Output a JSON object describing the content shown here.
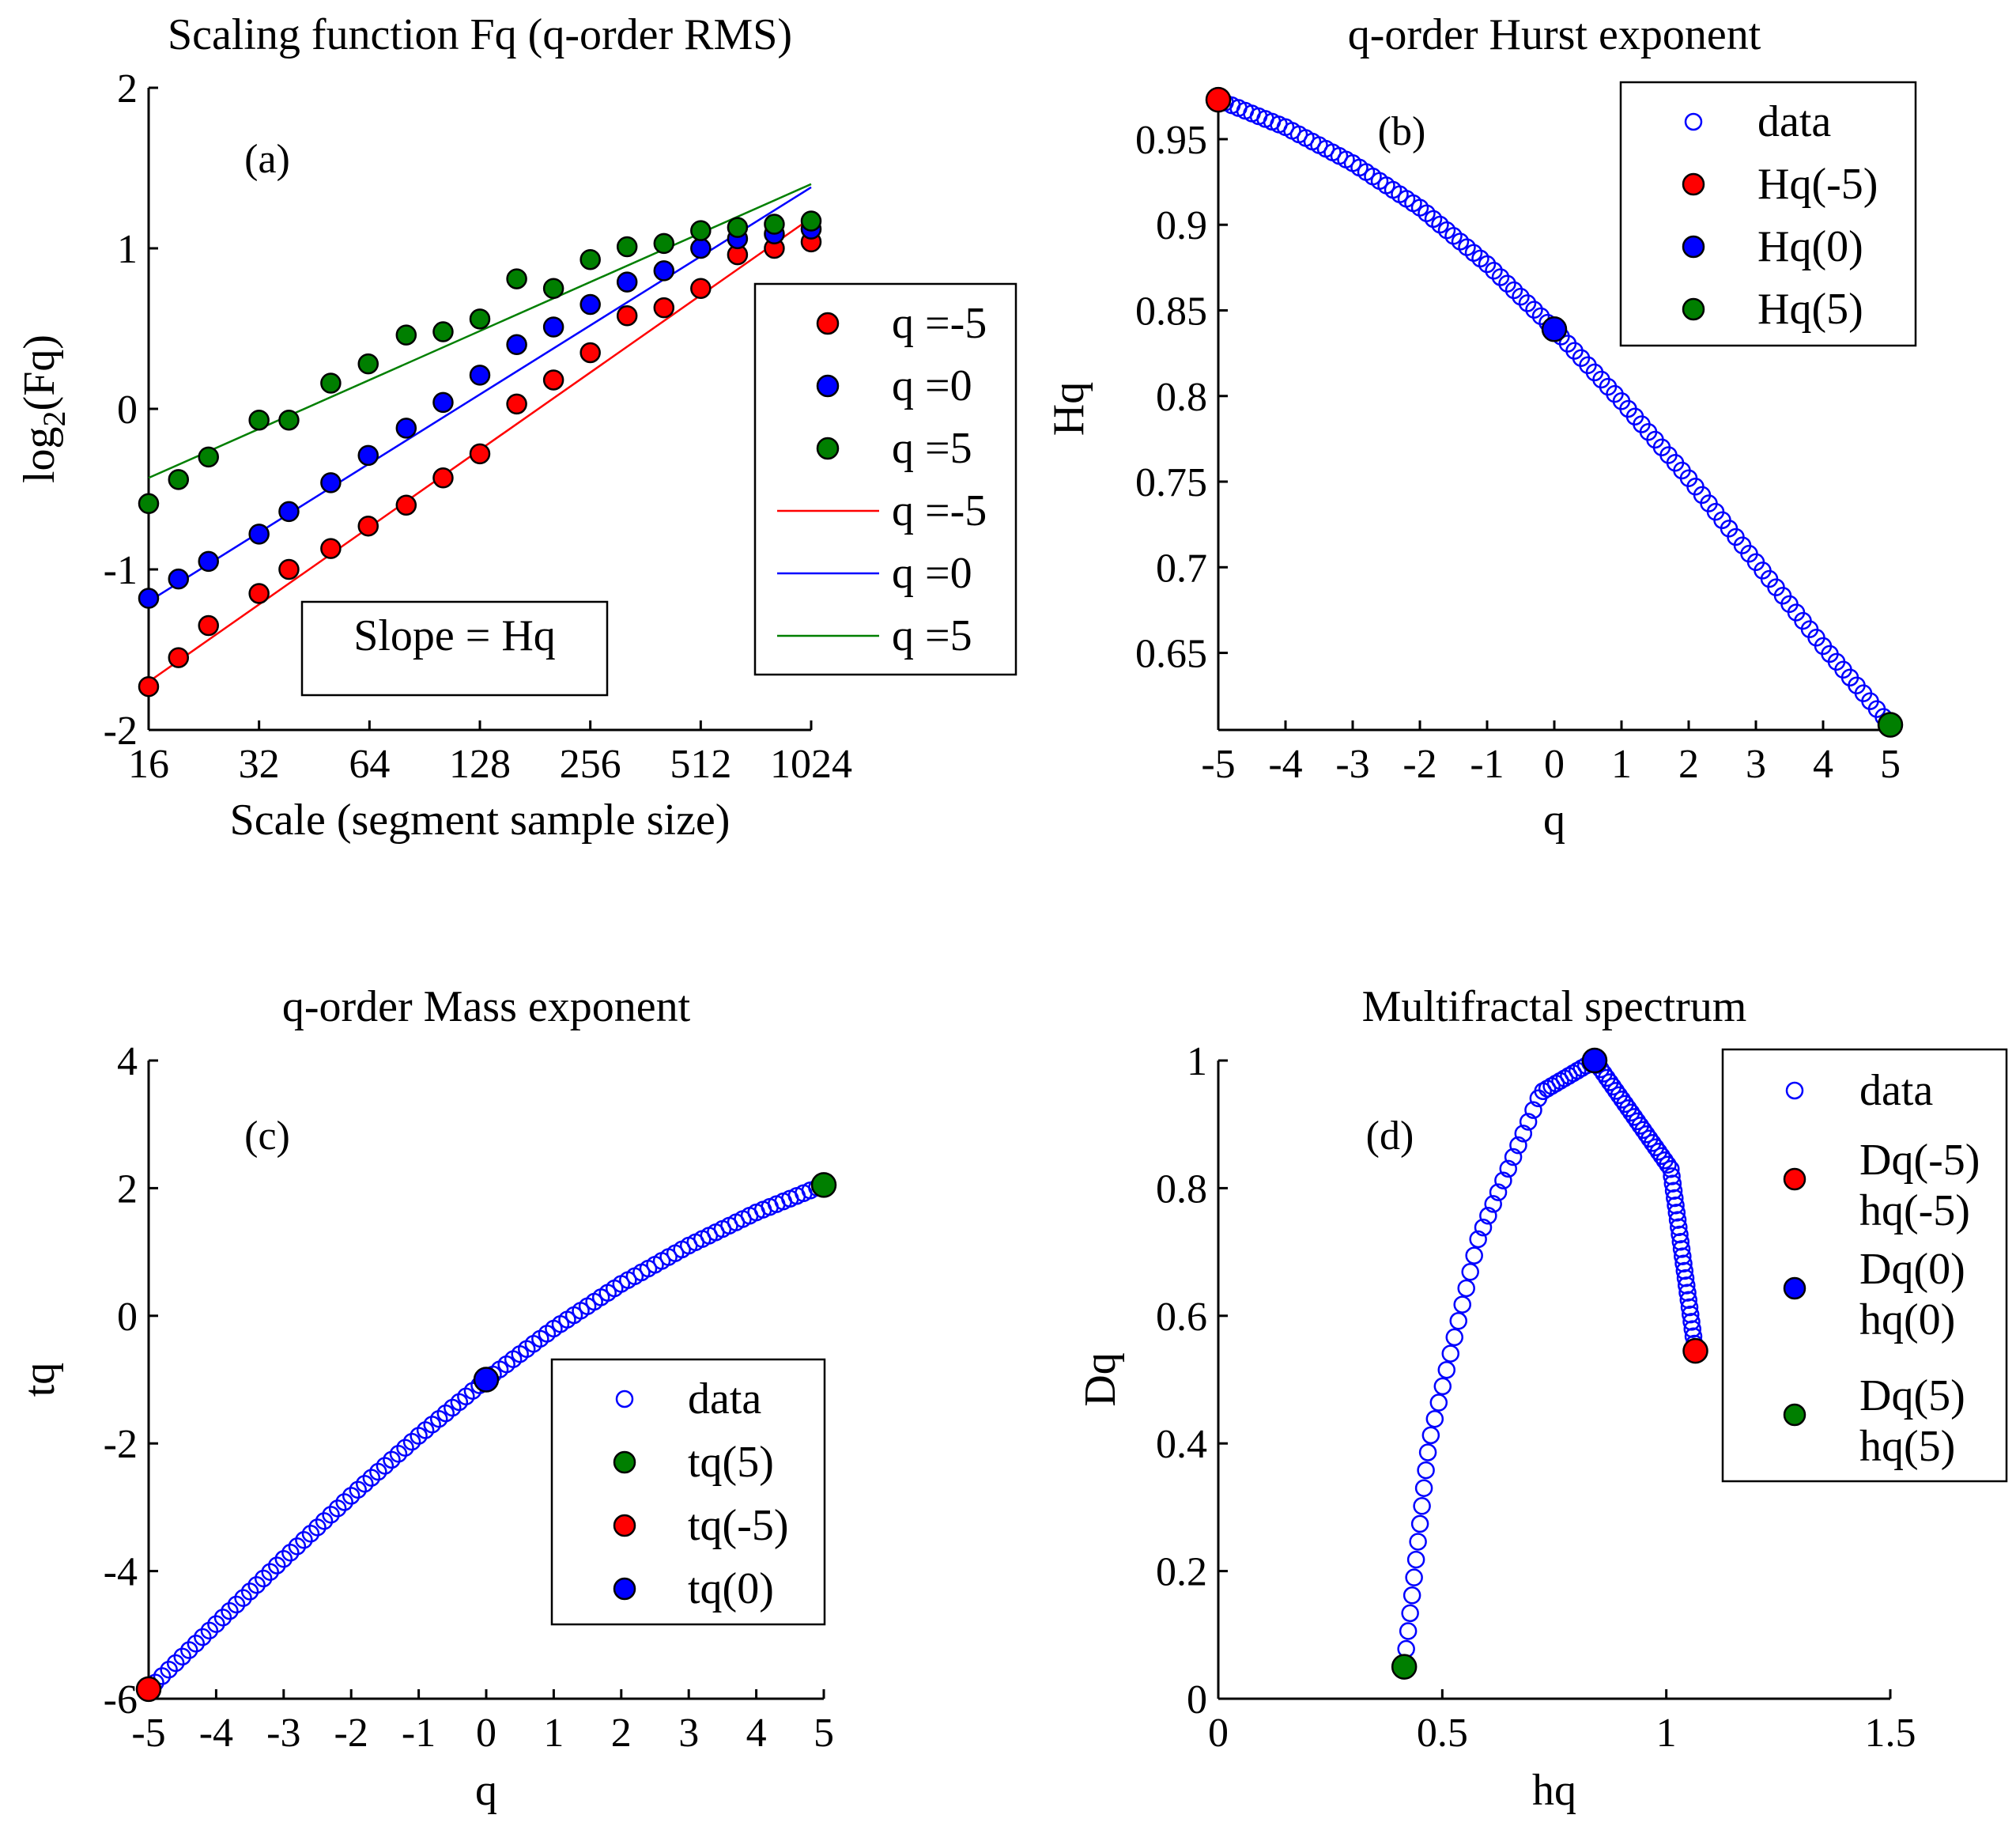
{
  "colors": {
    "red": "#ff0000",
    "blue": "#0000ff",
    "green": "#007f00",
    "axis": "#000000",
    "background": "#ffffff"
  },
  "chart_data": [
    {
      "id": "a",
      "type": "scatter",
      "panel_label": "(a)",
      "title": "Scaling function Fq (q-order RMS)",
      "xlabel": "Scale (segment sample size)",
      "ylabel_main": "log",
      "ylabel_sub": "2",
      "ylabel_tail": "(Fq)",
      "xscale": "log2",
      "xlim": [
        16,
        1024
      ],
      "ylim": [
        -2,
        2
      ],
      "xticks": [
        16,
        32,
        64,
        128,
        256,
        512,
        1024
      ],
      "xtick_labels": [
        "16",
        "32",
        "64",
        "128",
        "256",
        "512",
        "1024"
      ],
      "yticks": [
        -2,
        -1,
        0,
        1,
        2
      ],
      "ytick_labels": [
        "-2",
        "-1",
        "0",
        "1",
        "2"
      ],
      "annotation": "Slope = Hq",
      "legend_position": "right",
      "legend": [
        {
          "label": "q =-5",
          "kind": "marker",
          "color": "red"
        },
        {
          "label": "q =0",
          "kind": "marker",
          "color": "blue"
        },
        {
          "label": "q =5",
          "kind": "marker",
          "color": "green"
        },
        {
          "label": "q =-5",
          "kind": "line",
          "color": "red"
        },
        {
          "label": "q =0",
          "kind": "line",
          "color": "blue"
        },
        {
          "label": "q =5",
          "kind": "line",
          "color": "green"
        }
      ],
      "x": [
        16,
        19.3,
        23.3,
        32,
        38.6,
        50.2,
        63.5,
        80.6,
        101.6,
        128,
        161.3,
        203.2,
        256,
        322.5,
        406.4,
        512,
        645.1,
        812.7,
        1024
      ],
      "series": [
        {
          "name": "q =-5",
          "color": "red",
          "values": [
            -1.73,
            -1.55,
            -1.35,
            -1.15,
            -1.0,
            -0.87,
            -0.73,
            -0.6,
            -0.43,
            -0.28,
            0.03,
            0.18,
            0.35,
            0.58,
            0.63,
            0.75,
            0.96,
            1.0,
            1.04
          ],
          "fit": {
            "x": [
              16,
              1024
            ],
            "y": [
              -1.7,
              1.19
            ]
          }
        },
        {
          "name": "q =0",
          "color": "blue",
          "values": [
            -1.18,
            -1.06,
            -0.95,
            -0.78,
            -0.64,
            -0.46,
            -0.29,
            -0.12,
            0.04,
            0.21,
            0.4,
            0.51,
            0.65,
            0.79,
            0.86,
            1.0,
            1.06,
            1.09,
            1.12
          ],
          "fit": {
            "x": [
              16,
              1024
            ],
            "y": [
              -1.2,
              1.38
            ]
          }
        },
        {
          "name": "q =5",
          "color": "green",
          "values": [
            -0.59,
            -0.44,
            -0.3,
            -0.07,
            -0.07,
            0.16,
            0.28,
            0.46,
            0.48,
            0.56,
            0.81,
            0.75,
            0.93,
            1.01,
            1.03,
            1.11,
            1.13,
            1.15,
            1.17
          ],
          "fit": {
            "x": [
              16,
              1024
            ],
            "y": [
              -0.43,
              1.4
            ]
          }
        }
      ]
    },
    {
      "id": "b",
      "type": "scatter",
      "panel_label": "(b)",
      "title": "q-order Hurst exponent",
      "xlabel": "q",
      "ylabel": "Hq",
      "xlim": [
        -5,
        5
      ],
      "ylim": [
        0.605,
        0.98
      ],
      "xticks": [
        -5,
        -4,
        -3,
        -2,
        -1,
        0,
        1,
        2,
        3,
        4,
        5
      ],
      "xtick_labels": [
        "-5",
        "-4",
        "-3",
        "-2",
        "-1",
        "0",
        "1",
        "2",
        "3",
        "4",
        "5"
      ],
      "yticks": [
        0.65,
        0.7,
        0.75,
        0.8,
        0.85,
        0.9,
        0.95
      ],
      "ytick_labels": [
        "0.65",
        "0.7",
        "0.75",
        "0.8",
        "0.85",
        "0.9",
        "0.95"
      ],
      "legend_position": "top-right",
      "legend": [
        {
          "label": "data",
          "kind": "open",
          "color": "blue"
        },
        {
          "label": "Hq(-5)",
          "kind": "marker",
          "color": "red"
        },
        {
          "label": "Hq(0)",
          "kind": "marker",
          "color": "blue"
        },
        {
          "label": "Hq(5)",
          "kind": "marker",
          "color": "green"
        }
      ],
      "curve": {
        "q_start": -5,
        "q_end": 5,
        "count": 101,
        "knots_q": [
          -5,
          -4,
          -3,
          -2,
          -1,
          0,
          1,
          2,
          3,
          4,
          5
        ],
        "knots_value": [
          0.973,
          0.957,
          0.936,
          0.91,
          0.877,
          0.839,
          0.797,
          0.752,
          0.703,
          0.654,
          0.608
        ]
      },
      "highlights": [
        {
          "name": "Hq(-5)",
          "x": -5,
          "y": 0.973,
          "color": "red"
        },
        {
          "name": "Hq(0)",
          "x": 0,
          "y": 0.839,
          "color": "blue"
        },
        {
          "name": "Hq(5)",
          "x": 5,
          "y": 0.608,
          "color": "green"
        }
      ]
    },
    {
      "id": "c",
      "type": "scatter",
      "panel_label": "(c)",
      "title": "q-order Mass exponent",
      "xlabel": "q",
      "ylabel": "tq",
      "xlim": [
        -5,
        5
      ],
      "ylim": [
        -6,
        4
      ],
      "xticks": [
        -5,
        -4,
        -3,
        -2,
        -1,
        0,
        1,
        2,
        3,
        4,
        5
      ],
      "xtick_labels": [
        "-5",
        "-4",
        "-3",
        "-2",
        "-1",
        "0",
        "1",
        "2",
        "3",
        "4",
        "5"
      ],
      "yticks": [
        -6,
        -4,
        -2,
        0,
        2,
        4
      ],
      "ytick_labels": [
        "-6",
        "-4",
        "-2",
        "0",
        "2",
        "4"
      ],
      "legend_position": "bottom-right",
      "legend": [
        {
          "label": "data",
          "kind": "open",
          "color": "blue"
        },
        {
          "label": "tq(5)",
          "kind": "marker",
          "color": "green"
        },
        {
          "label": "tq(-5)",
          "kind": "marker",
          "color": "red"
        },
        {
          "label": "tq(0)",
          "kind": "marker",
          "color": "blue"
        }
      ],
      "curve": {
        "q_start": -5,
        "q_end": 5,
        "count": 101,
        "knots_q": [
          -5,
          -4,
          -3,
          -2,
          -1,
          0,
          1,
          2,
          3,
          4,
          5
        ],
        "knots_value": [
          -5.85,
          -4.83,
          -3.81,
          -2.82,
          -1.88,
          -1.0,
          -0.2,
          0.5,
          1.1,
          1.62,
          2.05
        ]
      },
      "highlights": [
        {
          "name": "tq(-5)",
          "x": -5,
          "y": -5.85,
          "color": "red"
        },
        {
          "name": "tq(0)",
          "x": 0,
          "y": -1.0,
          "color": "blue"
        },
        {
          "name": "tq(5)",
          "x": 5,
          "y": 2.05,
          "color": "green"
        }
      ]
    },
    {
      "id": "d",
      "type": "scatter",
      "panel_label": "(d)",
      "title": "Multifractal spectrum",
      "xlabel": "hq",
      "ylabel": "Dq",
      "xlim": [
        0,
        1.5
      ],
      "ylim": [
        0,
        1
      ],
      "xticks": [
        0,
        0.5,
        1,
        1.5
      ],
      "xtick_labels": [
        "0",
        "0.5",
        "1",
        "1.5"
      ],
      "yticks": [
        0,
        0.2,
        0.4,
        0.6,
        0.8,
        1
      ],
      "ytick_labels": [
        "0",
        "0.2",
        "0.4",
        "0.6",
        "0.8",
        "1"
      ],
      "legend_position": "top-right",
      "legend": [
        {
          "label": "data",
          "label2": "",
          "kind": "open",
          "color": "blue"
        },
        {
          "label": "Dq(-5)",
          "label2": "hq(-5)",
          "kind": "marker",
          "color": "red"
        },
        {
          "label": "Dq(0)",
          "label2": "hq(0)",
          "kind": "marker",
          "color": "blue"
        },
        {
          "label": "Dq(5)",
          "label2": "hq(5)",
          "kind": "marker",
          "color": "green"
        }
      ],
      "curve": {
        "count": 101,
        "knots_t": [
          0,
          0.25,
          0.5,
          0.625,
          0.75,
          0.875,
          1.0
        ],
        "knots_hq": [
          1.065,
          1.01,
          0.84,
          0.72,
          0.58,
          0.47,
          0.415
        ],
        "knots_dq": [
          0.545,
          0.83,
          1.0,
          0.95,
          0.72,
          0.4,
          0.05
        ]
      },
      "highlights": [
        {
          "name": "Dq(-5) hq(-5)",
          "x": 1.065,
          "y": 0.545,
          "color": "red"
        },
        {
          "name": "Dq(0) hq(0)",
          "x": 0.84,
          "y": 1.0,
          "color": "blue"
        },
        {
          "name": "Dq(5) hq(5)",
          "x": 0.415,
          "y": 0.05,
          "color": "green"
        }
      ]
    }
  ]
}
